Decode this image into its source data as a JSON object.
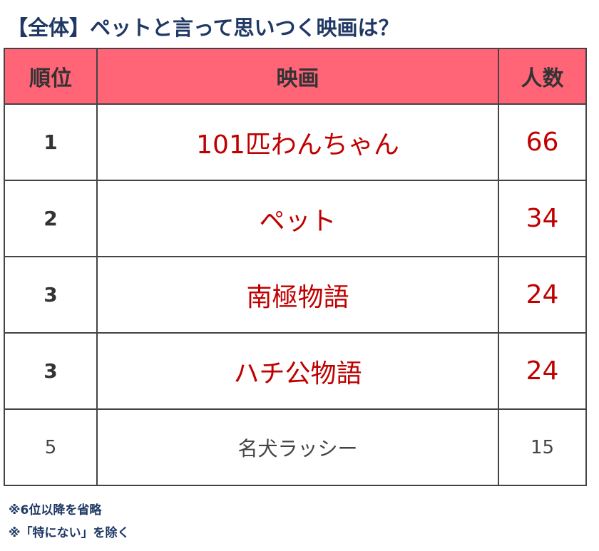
{
  "title": "【全体】ペットと言って思いつく映画は？",
  "table": {
    "headers": {
      "rank": "順位",
      "movie": "映画",
      "count": "人数"
    },
    "rows": [
      {
        "rank": "1",
        "movie": "101匹わんちゃん",
        "count": "66"
      },
      {
        "rank": "2",
        "movie": "ペット",
        "count": "34"
      },
      {
        "rank": "3",
        "movie": "南極物語",
        "count": "24"
      },
      {
        "rank": "3",
        "movie": "ハチ公物語",
        "count": "24"
      },
      {
        "rank": "5",
        "movie": "名犬ラッシー",
        "count": "15"
      }
    ]
  },
  "notes": [
    "※6位以降を省略",
    "※「特にない」を除く"
  ],
  "colors": {
    "header_bg": "#ff6477",
    "highlight_text": "#c00000",
    "title_text": "#1f3864"
  }
}
